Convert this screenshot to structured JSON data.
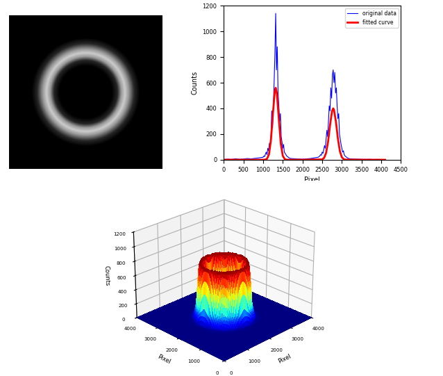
{
  "chart_data": [
    {
      "type": "image",
      "xlim": [
        0,
        4096
      ],
      "ylim": [
        0,
        4096
      ],
      "center": [
        2048,
        2048
      ],
      "r": [
        0,
        700,
        850,
        950,
        1050,
        1150,
        1300,
        1450,
        3000
      ],
      "values": [
        0,
        0,
        0.15,
        0.6,
        0.8,
        0.6,
        0.15,
        0,
        0
      ],
      "tick_labels": false
    },
    {
      "type": "line",
      "xlabel": "Pixel",
      "ylabel": "Counts",
      "xlim": [
        0,
        4500
      ],
      "xticks": [
        0,
        500,
        1000,
        1500,
        2000,
        2500,
        3000,
        3500,
        4000,
        4500
      ],
      "ylim": [
        0,
        1200
      ],
      "yticks": [
        0,
        200,
        400,
        600,
        800,
        1000,
        1200
      ],
      "legend": "upper right",
      "grid": false,
      "series": [
        {
          "name": "original data",
          "color": "#0000ff",
          "x": [
            0,
            100,
            200,
            300,
            400,
            500,
            600,
            700,
            800,
            900,
            1000,
            1020,
            1040,
            1060,
            1080,
            1100,
            1120,
            1140,
            1160,
            1180,
            1200,
            1220,
            1240,
            1260,
            1280,
            1300,
            1320,
            1340,
            1360,
            1380,
            1400,
            1420,
            1440,
            1460,
            1480,
            1500,
            1520,
            1540,
            1560,
            1580,
            1600,
            1620,
            1640,
            1660,
            1680,
            1700,
            1800,
            1900,
            2000,
            2100,
            2200,
            2300,
            2400,
            2420,
            2440,
            2460,
            2480,
            2500,
            2520,
            2540,
            2560,
            2580,
            2600,
            2620,
            2640,
            2660,
            2680,
            2700,
            2720,
            2740,
            2760,
            2780,
            2800,
            2820,
            2840,
            2860,
            2880,
            2900,
            2920,
            2940,
            2960,
            2980,
            3000,
            3020,
            3040,
            3060,
            3080,
            3100,
            3120,
            3140,
            3160,
            3180,
            3200,
            3300,
            3400,
            3500,
            3600,
            3700,
            3800,
            3900,
            4000,
            4096
          ],
          "values": [
            2,
            5,
            3,
            8,
            4,
            6,
            10,
            7,
            12,
            15,
            20,
            30,
            25,
            45,
            60,
            40,
            90,
            70,
            130,
            100,
            180,
            380,
            250,
            420,
            600,
            820,
            1140,
            700,
            880,
            520,
            420,
            300,
            360,
            180,
            140,
            90,
            120,
            60,
            50,
            40,
            30,
            25,
            20,
            15,
            12,
            10,
            8,
            6,
            5,
            7,
            10,
            15,
            20,
            25,
            30,
            40,
            35,
            60,
            50,
            80,
            110,
            90,
            160,
            230,
            180,
            300,
            420,
            380,
            560,
            480,
            660,
            700,
            600,
            680,
            520,
            560,
            420,
            320,
            360,
            200,
            160,
            120,
            90,
            60,
            70,
            40,
            30,
            25,
            20,
            15,
            12,
            10,
            8,
            6,
            5,
            4,
            3,
            4,
            2,
            3,
            2,
            2
          ]
        },
        {
          "name": "fitted curve",
          "color": "#ff0000",
          "x": [
            0,
            500,
            1000,
            1050,
            1100,
            1150,
            1200,
            1250,
            1300,
            1320,
            1350,
            1400,
            1450,
            1500,
            1550,
            1600,
            2000,
            2500,
            2550,
            2600,
            2650,
            2700,
            2750,
            2780,
            2800,
            2850,
            2900,
            2950,
            3000,
            3050,
            3100,
            3500,
            4096
          ],
          "values": [
            0,
            0,
            0,
            1,
            8,
            43,
            156,
            362,
            540,
            560,
            517,
            317,
            125,
            31,
            5,
            0,
            0,
            3,
            15,
            54,
            141,
            269,
            378,
            400,
            390,
            296,
            164,
            67,
            20,
            4,
            1,
            0,
            0
          ]
        }
      ]
    },
    {
      "type": "surface",
      "xlabel": "Pixel",
      "ylabel": "Pixel",
      "zlabel": "Counts",
      "xlim": [
        0,
        4000
      ],
      "xticks": [
        0,
        1000,
        2000,
        3000,
        4000
      ],
      "ylim": [
        0,
        4000
      ],
      "yticks": [
        0,
        1000,
        2000,
        3000,
        4000
      ],
      "zlim": [
        0,
        1200
      ],
      "zticks": [
        0,
        200,
        400,
        600,
        800,
        1000,
        1200
      ],
      "center": [
        2000,
        2000
      ],
      "r": [
        0,
        400,
        500,
        600,
        650,
        700,
        750,
        800,
        850,
        900,
        1000,
        1200,
        3000
      ],
      "values": [
        0,
        0,
        20,
        200,
        500,
        750,
        800,
        750,
        500,
        200,
        20,
        0,
        0
      ],
      "grid": true
    }
  ]
}
